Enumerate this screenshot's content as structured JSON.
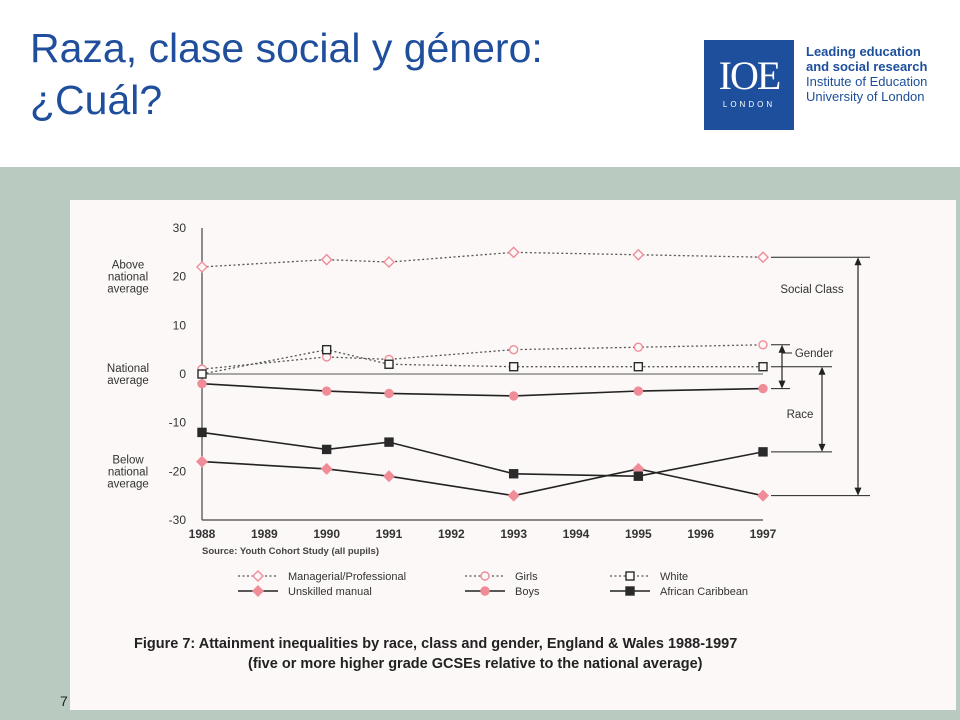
{
  "title": {
    "line1": "Raza, clase social y género:",
    "line2": "¿Cuál?"
  },
  "logo": {
    "mark": "IOE",
    "sub": "LONDON",
    "line1": "Leading education",
    "line2": "and social research",
    "line3": "Institute of Education",
    "line4": "University of London"
  },
  "slide_number": "7",
  "colors": {
    "accent_blue": "#1f4e9c",
    "band": "#b9cbc0",
    "pink": "#f08c98",
    "dark": "#2a2a2a"
  },
  "chart_data": {
    "type": "line",
    "x": [
      1988,
      1990,
      1991,
      1993,
      1995,
      1997
    ],
    "x_ticks": [
      "1988",
      "1989",
      "1990",
      "1991",
      "1992",
      "1993",
      "1994",
      "1995",
      "1996",
      "1997"
    ],
    "xlim": [
      1988,
      1997
    ],
    "ylim": [
      -30,
      30
    ],
    "y_ticks": [
      "30",
      "20",
      "10",
      "0",
      "-10",
      "-20",
      "-30"
    ],
    "y_zone_labels": {
      "above": [
        "Above",
        "national",
        "average"
      ],
      "national": [
        "National",
        "average"
      ],
      "below": [
        "Below",
        "national",
        "average"
      ]
    },
    "source": "Source: Youth Cohort Study (all pupils)",
    "series": [
      {
        "name": "Managerial/Professional",
        "marker": "diamond-open",
        "line": "dotted",
        "values": [
          22,
          23.5,
          23,
          25,
          24.5,
          24
        ]
      },
      {
        "name": "Girls",
        "marker": "circle-open",
        "line": "dotted",
        "values": [
          1,
          3.5,
          3,
          5,
          5.5,
          6
        ]
      },
      {
        "name": "White",
        "marker": "square-open",
        "line": "dotted",
        "values": [
          0,
          5,
          2,
          1.5,
          1.5,
          1.5
        ]
      },
      {
        "name": "Unskilled manual",
        "marker": "diamond-filled",
        "line": "solid",
        "values": [
          -18,
          -19.5,
          -21,
          -25,
          -19.5,
          -25
        ]
      },
      {
        "name": "Boys",
        "marker": "circle-filled",
        "line": "solid",
        "values": [
          -2,
          -3.5,
          -4,
          -4.5,
          -3.5,
          -3
        ]
      },
      {
        "name": "African Caribbean",
        "marker": "square-filled",
        "line": "solid",
        "values": [
          -12,
          -15.5,
          -14,
          -20.5,
          -21,
          -16
        ]
      }
    ],
    "bracket_labels": {
      "social_class": "Social Class",
      "gender": "Gender",
      "race": "Race"
    },
    "caption": {
      "line1": "Figure 7: Attainment inequalities by race, class and gender, England & Wales 1988-1997",
      "line2": "(five or more higher grade GCSEs relative to the national average)"
    }
  }
}
